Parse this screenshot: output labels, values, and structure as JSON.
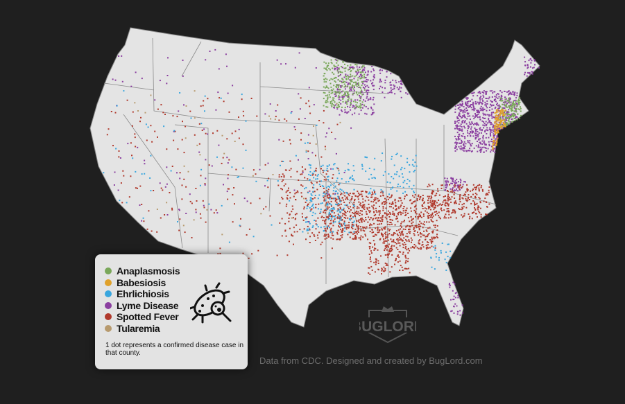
{
  "legend": {
    "items": [
      {
        "label": "Anaplasmosis",
        "color": "#7aa75a"
      },
      {
        "label": "Babesiosis",
        "color": "#e0a12a"
      },
      {
        "label": "Ehrlichiosis",
        "color": "#39a6de"
      },
      {
        "label": "Lyme Disease",
        "color": "#8b3fa0"
      },
      {
        "label": "Spotted Fever",
        "color": "#b0392c"
      },
      {
        "label": "Tularemia",
        "color": "#b79a6e"
      }
    ],
    "note": "1 dot represents a confirmed disease case in that county.",
    "icon": "bacteria-magnifier-icon"
  },
  "logo": {
    "text": "BUGLORD"
  },
  "credit": "Data from CDC. Designed and created by BugLord.com",
  "map": {
    "land_color": "#e4e4e4",
    "border_color": "#7a7a7a",
    "background": "#1f1f1f"
  }
}
